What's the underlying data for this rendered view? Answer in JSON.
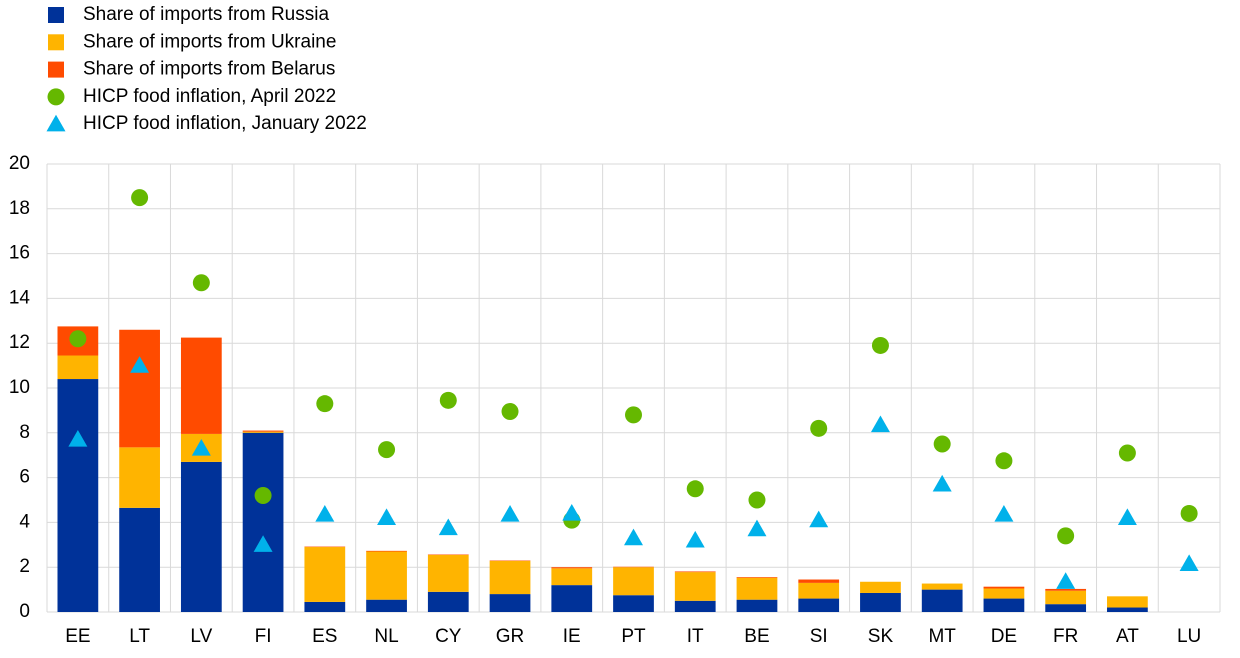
{
  "chart_data": {
    "type": "bar",
    "stacked": true,
    "grid": true,
    "legend": "top-left",
    "categories": [
      "EE",
      "LT",
      "LV",
      "FI",
      "ES",
      "NL",
      "CY",
      "GR",
      "IE",
      "PT",
      "IT",
      "BE",
      "SI",
      "SK",
      "MT",
      "DE",
      "FR",
      "AT",
      "LU"
    ],
    "ylim": [
      0,
      20
    ],
    "yticks": [
      0,
      2,
      4,
      6,
      8,
      10,
      12,
      14,
      16,
      18,
      20
    ],
    "series": [
      {
        "name": "Share of imports from Russia",
        "type": "bar",
        "color": "#003299",
        "values": [
          10.4,
          4.65,
          6.7,
          8.0,
          0.45,
          0.55,
          0.9,
          0.8,
          1.2,
          0.75,
          0.5,
          0.55,
          0.6,
          0.85,
          1.0,
          0.6,
          0.35,
          0.2,
          0
        ]
      },
      {
        "name": "Share of imports from Ukraine",
        "type": "bar",
        "color": "#ffb400",
        "values": [
          1.05,
          2.7,
          1.25,
          0.05,
          2.45,
          2.15,
          1.65,
          1.48,
          0.75,
          1.25,
          1.28,
          0.98,
          0.7,
          0.5,
          0.27,
          0.45,
          0.6,
          0.5,
          0
        ]
      },
      {
        "name": "Share of imports from Belarus",
        "type": "bar",
        "color": "#ff4b00",
        "values": [
          1.3,
          5.25,
          4.3,
          0.05,
          0.02,
          0.03,
          0.02,
          0.02,
          0.05,
          0.02,
          0.03,
          0.03,
          0.15,
          0,
          0,
          0.08,
          0.08,
          0,
          0
        ]
      },
      {
        "name": "HICP food inflation, April 2022",
        "type": "scatter",
        "marker": "circle",
        "color": "#65b800",
        "values": [
          12.2,
          18.5,
          14.7,
          5.2,
          9.3,
          7.25,
          9.45,
          8.95,
          4.1,
          8.8,
          5.5,
          5.0,
          8.2,
          11.9,
          7.5,
          6.75,
          3.4,
          7.1,
          4.4
        ]
      },
      {
        "name": "HICP food inflation, January 2022",
        "type": "scatter",
        "marker": "triangle",
        "color": "#00b1ea",
        "values": [
          7.7,
          11.0,
          7.3,
          3.0,
          4.35,
          4.2,
          3.75,
          4.35,
          4.4,
          3.3,
          3.2,
          3.7,
          4.1,
          8.35,
          5.7,
          4.35,
          1.35,
          4.2,
          2.15
        ]
      }
    ]
  }
}
